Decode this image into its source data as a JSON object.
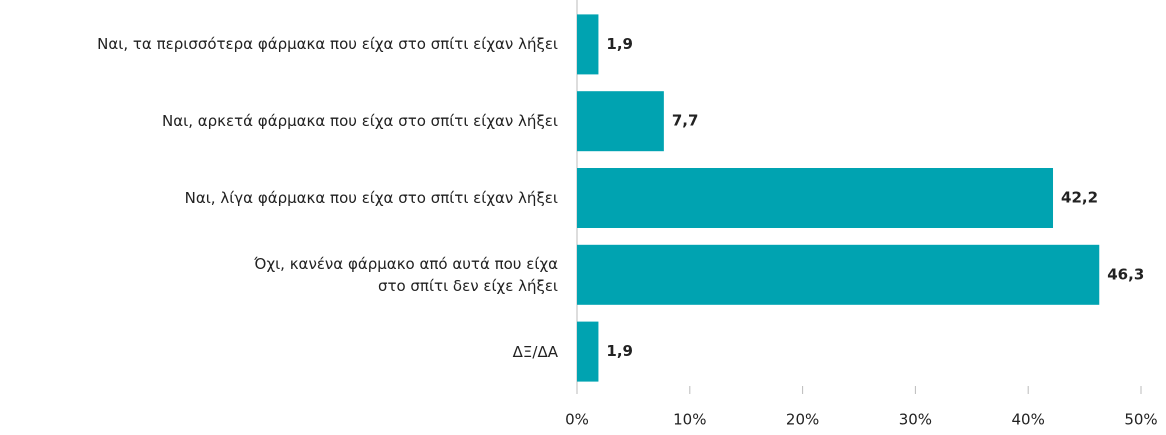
{
  "chart_data": {
    "type": "bar",
    "orientation": "horizontal",
    "categories": [
      "Ναι, τα περισσότερα φάρμακα που είχα στο σπίτι είχαν λήξει",
      "Ναι, αρκετά φάρμακα που είχα στο σπίτι είχαν λήξει",
      "Ναι, λίγα φάρμακα που είχα στο σπίτι είχαν λήξει",
      "Όχι, κανένα φάρμακο από αυτά που είχα\nστο σπίτι δεν είχε λήξει",
      "ΔΞ/ΔΑ"
    ],
    "values": [
      1.9,
      7.7,
      42.2,
      46.3,
      1.9
    ],
    "value_labels": [
      "1,9",
      "7,7",
      "42,2",
      "46,3",
      "1,9"
    ],
    "color": "#00a3b1",
    "xlim": [
      0,
      50
    ],
    "xticks": [
      {
        "value": 0,
        "label": "0%"
      },
      {
        "value": 10,
        "label": "10%"
      },
      {
        "value": 20,
        "label": "20%"
      },
      {
        "value": 30,
        "label": "30%"
      },
      {
        "value": 40,
        "label": "40%"
      },
      {
        "value": 50,
        "label": "50%"
      }
    ]
  }
}
